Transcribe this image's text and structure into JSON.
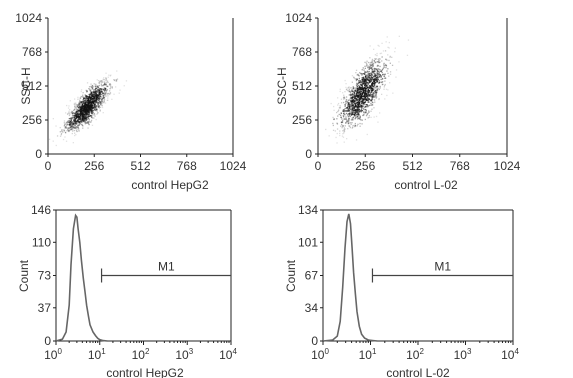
{
  "chart_data": [
    {
      "id": "scatter-hepg2",
      "type": "scatter",
      "xlabel": "control HepG2",
      "ylabel": "SSC-H",
      "xlim": [
        0,
        1024
      ],
      "ylim": [
        0,
        1024
      ],
      "xticks": [
        "0",
        "256",
        "512",
        "768",
        "1024"
      ],
      "yticks": [
        "0",
        "256",
        "512",
        "768",
        "1024"
      ],
      "distribution": {
        "x_center": 215,
        "y_center": 360,
        "x_spread": 60,
        "y_spread": 95,
        "correlation": 0.8,
        "points": 1300
      }
    },
    {
      "id": "scatter-l02",
      "type": "scatter",
      "xlabel": "control L-02",
      "ylabel": "SSC-H",
      "xlim": [
        0,
        1024
      ],
      "ylim": [
        0,
        1024
      ],
      "xticks": [
        "0",
        "256",
        "512",
        "768",
        "1024"
      ],
      "yticks": [
        "0",
        "256",
        "512",
        "768",
        "1024"
      ],
      "distribution": {
        "x_center": 240,
        "y_center": 460,
        "x_spread": 65,
        "y_spread": 130,
        "correlation": 0.7,
        "points": 1300
      }
    },
    {
      "id": "hist-hepg2",
      "type": "line",
      "xlabel": "control HepG2",
      "ylabel": "Count",
      "xscale": "log",
      "xlim": [
        1,
        10000
      ],
      "ylim": [
        0,
        146
      ],
      "yticks": [
        "0",
        "37",
        "73",
        "110",
        "146"
      ],
      "xticks": [
        {
          "base": "10",
          "exp": "0"
        },
        {
          "base": "10",
          "exp": "1"
        },
        {
          "base": "10",
          "exp": "2"
        },
        {
          "base": "10",
          "exp": "3"
        },
        {
          "base": "10",
          "exp": "4"
        }
      ],
      "x": [
        1,
        1.4,
        1.7,
        2,
        2.2,
        2.5,
        2.8,
        3,
        3.2,
        3.5,
        3.8,
        4.2,
        4.6,
        5,
        5.5,
        6,
        7,
        8,
        9,
        10,
        12,
        15
      ],
      "y": [
        0,
        2,
        10,
        40,
        85,
        125,
        140,
        138,
        125,
        110,
        90,
        70,
        55,
        40,
        28,
        18,
        10,
        6,
        3,
        1.5,
        0.5,
        0
      ],
      "marker": {
        "label": "M1",
        "from": 11,
        "to": 10000,
        "level": 73
      }
    },
    {
      "id": "hist-l02",
      "type": "line",
      "xlabel": "control L-02",
      "ylabel": "Count",
      "xscale": "log",
      "xlim": [
        1,
        10000
      ],
      "ylim": [
        0,
        134
      ],
      "yticks": [
        "0",
        "34",
        "67",
        "101",
        "134"
      ],
      "xticks": [
        {
          "base": "10",
          "exp": "0"
        },
        {
          "base": "10",
          "exp": "1"
        },
        {
          "base": "10",
          "exp": "2"
        },
        {
          "base": "10",
          "exp": "3"
        },
        {
          "base": "10",
          "exp": "4"
        }
      ],
      "x": [
        1,
        1.6,
        2,
        2.3,
        2.6,
        2.9,
        3.2,
        3.5,
        3.8,
        4.1,
        4.4,
        4.8,
        5.2,
        5.8,
        6.5,
        7.5,
        9,
        11,
        14
      ],
      "y": [
        0,
        1,
        5,
        20,
        55,
        95,
        122,
        130,
        120,
        95,
        70,
        48,
        30,
        15,
        7,
        3,
        1,
        0.5,
        0
      ],
      "marker": {
        "label": "M1",
        "from": 11,
        "to": 10000,
        "level": 67
      }
    }
  ]
}
